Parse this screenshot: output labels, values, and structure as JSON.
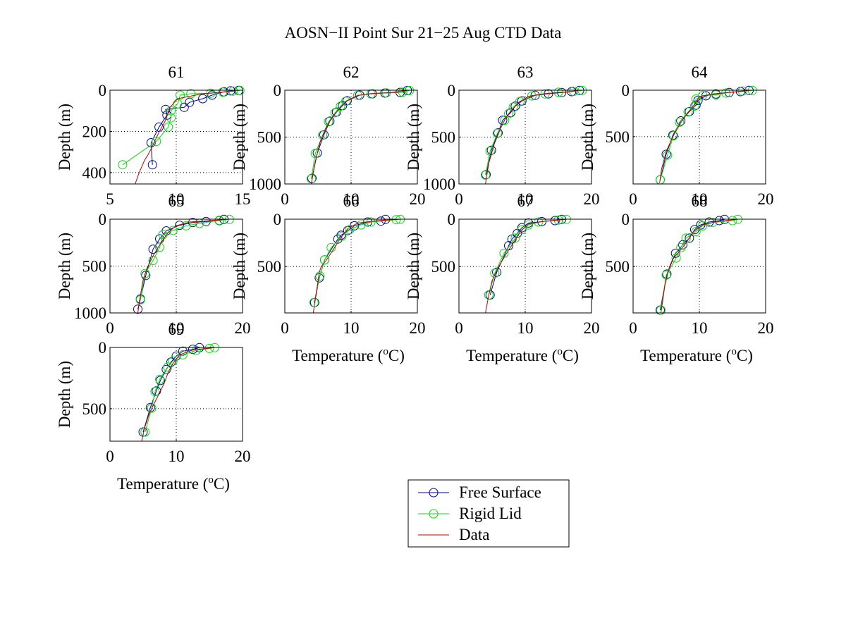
{
  "chart_data": {
    "type": "line",
    "title": "AOSN−II Point Sur 21−25 Aug CTD Data",
    "xlabel": "Temperature  (°C)",
    "xlabel_main": "Temperature  (",
    "xlabel_sup": "o",
    "xlabel_end": "C)",
    "ylabel": "Depth  (m)",
    "grid": "dotted at interior ticks",
    "legend": {
      "placement": "bottom-center",
      "entries": [
        {
          "name": "Free Surface",
          "color": "#0000a0",
          "marker": "circle"
        },
        {
          "name": "Rigid Lid",
          "color": "#00e000",
          "marker": "circle"
        },
        {
          "name": "Data",
          "color": "#c00000",
          "marker": "none"
        }
      ]
    },
    "panels": [
      {
        "title": "61",
        "xlim": [
          5,
          15
        ],
        "ylim": [
          0,
          455
        ],
        "xticks": [
          "5",
          "10",
          "15"
        ],
        "yticks": [
          "0",
          "200",
          "400"
        ],
        "ytick_vals": [
          0,
          200,
          400
        ],
        "ylabel_visible": true,
        "xlabel_visible": false,
        "series": [
          {
            "name": "Free Surface",
            "x": [
              14.7,
              14.1,
              13.6,
              12.7,
              12.0,
              11.0,
              10.6,
              9.2,
              9.3,
              8.7,
              8.1,
              8.2
            ],
            "y": [
              1,
              3,
              8,
              24,
              41,
              59,
              83,
              93,
              121,
              179,
              255,
              362
            ]
          },
          {
            "name": "Rigid Lid",
            "x": [
              14.8,
              14.3,
              13.5,
              12.6,
              11.1,
              10.3,
              10.1,
              9.6,
              9.6,
              9.4,
              8.5,
              5.95
            ],
            "y": [
              1,
              4,
              9,
              15,
              17,
              24,
              66,
              100,
              134,
              179,
              248,
              362
            ]
          },
          {
            "name": "Data",
            "x": [
              14.5,
              13.5,
              12.0,
              10.1,
              9.5,
              9.2,
              8.7,
              8.3,
              7.9,
              7.6,
              7.2,
              6.9
            ],
            "y": [
              3,
              9,
              17,
              41,
              86,
              145,
              203,
              259,
              310,
              341,
              400,
              455
            ]
          }
        ]
      },
      {
        "title": "62",
        "xlim": [
          0,
          20
        ],
        "ylim": [
          0,
          1000
        ],
        "xticks": [
          "0",
          "10",
          "20"
        ],
        "yticks": [
          "0",
          "500",
          "1000"
        ],
        "ytick_vals": [
          0,
          500,
          1000
        ],
        "ylabel_visible": true,
        "xlabel_visible": false,
        "series": [
          {
            "name": "Free Surface",
            "x": [
              18.5,
              17.4,
              15.1,
              13.2,
              11.3,
              9.4,
              8.7,
              7.8,
              6.8,
              5.9,
              4.9,
              4.1
            ],
            "y": [
              3,
              23,
              30,
              38,
              53,
              113,
              165,
              233,
              330,
              475,
              670,
              940
            ]
          },
          {
            "name": "Rigid Lid",
            "x": [
              18.8,
              17.8,
              15.3,
              13.0,
              11.0,
              9.2,
              8.4,
              7.6,
              6.6,
              5.7,
              4.6,
              4.0
            ],
            "y": [
              3,
              20,
              28,
              40,
              55,
              118,
              170,
              240,
              335,
              480,
              675,
              945
            ]
          },
          {
            "name": "Data",
            "x": [
              18.2,
              16.0,
              13.0,
              11.0,
              9.3,
              8.3,
              7.2,
              6.2,
              5.3,
              4.6,
              4.0
            ],
            "y": [
              3,
              25,
              35,
              55,
              115,
              190,
              285,
              400,
              560,
              760,
              1000
            ]
          }
        ]
      },
      {
        "title": "63",
        "xlim": [
          0,
          20
        ],
        "ylim": [
          0,
          1000
        ],
        "xticks": [
          "0",
          "10",
          "20"
        ],
        "yticks": [
          "0",
          "500",
          "1000"
        ],
        "ytick_vals": [
          0,
          500,
          1000
        ],
        "ylabel_visible": true,
        "xlabel_visible": false,
        "series": [
          {
            "name": "Free Surface",
            "x": [
              18.2,
              17.0,
              15.5,
              13.5,
              11.5,
              9.5,
              8.5,
              7.8,
              6.6,
              5.9,
              4.9,
              4.1
            ],
            "y": [
              2,
              15,
              25,
              38,
              55,
              115,
              170,
              240,
              320,
              455,
              640,
              900
            ]
          },
          {
            "name": "Rigid Lid",
            "x": [
              18.6,
              17.3,
              15.0,
              13.0,
              11.0,
              9.2,
              8.2,
              7.5,
              6.9,
              5.8,
              4.7,
              4.0
            ],
            "y": [
              2,
              12,
              22,
              40,
              60,
              120,
              180,
              250,
              320,
              460,
              650,
              905
            ]
          },
          {
            "name": "Data",
            "x": [
              18.0,
              16.0,
              13.0,
              10.5,
              9.0,
              8.0,
              7.0,
              6.2,
              5.3,
              4.5,
              4.0
            ],
            "y": [
              3,
              20,
              35,
              65,
              130,
              210,
              300,
              420,
              580,
              780,
              1000
            ]
          }
        ]
      },
      {
        "title": "64",
        "xlim": [
          0,
          20
        ],
        "ylim": [
          0,
          1010
        ],
        "xticks": [
          "0",
          "10",
          "20"
        ],
        "yticks": [
          "0",
          "500"
        ],
        "ytick_vals": [
          0,
          500
        ],
        "ylabel_visible": true,
        "xlabel_visible": false,
        "series": [
          {
            "name": "Free Surface",
            "x": [
              17.5,
              16.2,
              14.5,
              12.5,
              11.0,
              9.8,
              9.5,
              8.5,
              7.2,
              6.0,
              5.0,
              4.1
            ],
            "y": [
              2,
              15,
              25,
              40,
              60,
              110,
              160,
              230,
              330,
              485,
              690,
              965
            ]
          },
          {
            "name": "Rigid Lid",
            "x": [
              18.0,
              16.5,
              14.0,
              12.5,
              10.5,
              9.5,
              9.3,
              8.3,
              7.0,
              6.1,
              5.2,
              4.1
            ],
            "y": [
              2,
              10,
              30,
              50,
              55,
              95,
              170,
              235,
              345,
              490,
              700,
              965
            ]
          },
          {
            "name": "Data",
            "x": [
              17.5,
              15.0,
              12.0,
              10.0,
              9.3,
              8.3,
              7.2,
              6.0,
              5.0,
              4.3,
              4.0
            ],
            "y": [
              3,
              20,
              40,
              70,
              150,
              240,
              350,
              500,
              660,
              850,
              1000
            ]
          }
        ]
      },
      {
        "title": "65",
        "xlim": [
          0,
          20
        ],
        "ylim": [
          0,
          1000
        ],
        "xticks": [
          "0",
          "10",
          "20"
        ],
        "yticks": [
          "0",
          "500",
          "1000"
        ],
        "ytick_vals": [
          0,
          500,
          1000
        ],
        "ylabel_visible": true,
        "xlabel_visible": false,
        "series": [
          {
            "name": "Free Surface",
            "x": [
              17.2,
              16.5,
              14.5,
              12.5,
              10.5,
              8.5,
              7.5,
              6.5,
              5.4,
              4.6,
              4.2
            ],
            "y": [
              2,
              15,
              25,
              35,
              65,
              125,
              210,
              320,
              600,
              850,
              960
            ]
          },
          {
            "name": "Rigid Lid",
            "x": [
              18.0,
              16.5,
              13.5,
              11.5,
              9.5,
              8.0,
              7.5,
              6.5,
              5.3,
              4.6
            ],
            "y": [
              2,
              12,
              45,
              70,
              120,
              165,
              300,
              440,
              580,
              860
            ]
          },
          {
            "name": "Data",
            "x": [
              17.5,
              15.0,
              12.0,
              10.0,
              8.8,
              7.8,
              6.6,
              5.6,
              5.0,
              4.5,
              4.2
            ],
            "y": [
              3,
              15,
              30,
              70,
              140,
              240,
              380,
              520,
              650,
              850,
              1000
            ]
          }
        ]
      },
      {
        "title": "66",
        "xlim": [
          0,
          20
        ],
        "ylim": [
          0,
          990
        ],
        "xticks": [
          "0",
          "10",
          "20"
        ],
        "yticks": [
          "0",
          "500"
        ],
        "ytick_vals": [
          0,
          500
        ],
        "ylabel_visible": true,
        "xlabel_visible": true,
        "series": [
          {
            "name": "Free Surface",
            "x": [
              15.2,
              14.5,
              12.5,
              10.5,
              9.5,
              8.5,
              8.0,
              6.0,
              5.2,
              4.5
            ],
            "y": [
              2,
              20,
              30,
              70,
              120,
              170,
              210,
              430,
              620,
              880
            ]
          },
          {
            "name": "Rigid Lid",
            "x": [
              17.4,
              16.8,
              13.0,
              11.5,
              9.8,
              8.6,
              7.0,
              6.0,
              5.3,
              4.4
            ],
            "y": [
              2,
              5,
              30,
              60,
              110,
              180,
              300,
              430,
              600,
              880
            ]
          },
          {
            "name": "Data",
            "x": [
              17.0,
              14.0,
              11.0,
              9.5,
              8.4,
              7.5,
              6.5,
              5.5,
              5.2,
              4.7,
              4.3
            ],
            "y": [
              3,
              15,
              40,
              100,
              200,
              300,
              410,
              500,
              560,
              800,
              990
            ]
          }
        ]
      },
      {
        "title": "67",
        "xlim": [
          0,
          20
        ],
        "ylim": [
          0,
          990
        ],
        "xticks": [
          "0",
          "10",
          "20"
        ],
        "yticks": [
          "0",
          "500"
        ],
        "ytick_vals": [
          0,
          500
        ],
        "ylabel_visible": true,
        "xlabel_visible": true,
        "series": [
          {
            "name": "Free Surface",
            "x": [
              15.5,
              14.5,
              12.5,
              10.5,
              9.5,
              8.8,
              8.0,
              7.5,
              5.7,
              4.7
            ],
            "y": [
              2,
              15,
              25,
              40,
              90,
              150,
              210,
              280,
              560,
              800
            ]
          },
          {
            "name": "Rigid Lid",
            "x": [
              16.2,
              15.0,
              12.0,
              10.5,
              9.5,
              8.5,
              6.8,
              5.4,
              4.5
            ],
            "y": [
              2,
              10,
              30,
              60,
              110,
              200,
              360,
              570,
              800
            ]
          },
          {
            "name": "Data",
            "x": [
              16.0,
              13.0,
              10.5,
              9.3,
              8.2,
              7.0,
              6.0,
              5.0,
              4.5,
              4.0
            ],
            "y": [
              3,
              20,
              50,
              130,
              250,
              380,
              500,
              650,
              800,
              990
            ]
          }
        ]
      },
      {
        "title": "68",
        "xlim": [
          0,
          20
        ],
        "ylim": [
          0,
          990
        ],
        "xticks": [
          "0",
          "10",
          "20"
        ],
        "yticks": [
          "0",
          "500"
        ],
        "ytick_vals": [
          0,
          500
        ],
        "ylabel_visible": true,
        "xlabel_visible": true,
        "series": [
          {
            "name": "Free Surface",
            "x": [
              13.8,
              13.0,
              11.5,
              10.2,
              9.3,
              8.5,
              7.5,
              6.4,
              5.1,
              4.1
            ],
            "y": [
              2,
              15,
              30,
              60,
              110,
              200,
              270,
              360,
              580,
              960
            ]
          },
          {
            "name": "Rigid Lid",
            "x": [
              15.8,
              15.0,
              12.0,
              10.5,
              9.5,
              8.0,
              7.2,
              6.5,
              5.0,
              4.2
            ],
            "y": [
              2,
              15,
              35,
              70,
              130,
              200,
              300,
              410,
              590,
              960
            ]
          },
          {
            "name": "Data",
            "x": [
              15.5,
              12.5,
              10.5,
              9.0,
              8.0,
              7.0,
              6.0,
              5.5,
              4.8,
              4.2
            ],
            "y": [
              3,
              25,
              60,
              140,
              250,
              340,
              420,
              500,
              700,
              990
            ]
          }
        ]
      },
      {
        "title": "69",
        "xlim": [
          0,
          20
        ],
        "ylim": [
          0,
          765
        ],
        "xticks": [
          "0",
          "10",
          "20"
        ],
        "yticks": [
          "0",
          "500"
        ],
        "ytick_vals": [
          0,
          500
        ],
        "ylabel_visible": true,
        "xlabel_visible": true,
        "series": [
          {
            "name": "Free Surface",
            "x": [
              13.5,
              12.5,
              11.0,
              10.0,
              9.2,
              8.5,
              7.6,
              7.0,
              6.1,
              5.0
            ],
            "y": [
              2,
              15,
              30,
              70,
              120,
              180,
              270,
              355,
              490,
              690
            ]
          },
          {
            "name": "Rigid Lid",
            "x": [
              15.8,
              15.0,
              13.0,
              11.0,
              9.5,
              8.7,
              7.5,
              6.8,
              6.3,
              5.3
            ],
            "y": [
              2,
              8,
              25,
              60,
              110,
              160,
              260,
              360,
              495,
              690
            ]
          },
          {
            "name": "Data",
            "x": [
              15.5,
              12.5,
              10.5,
              9.5,
              8.8,
              8.2,
              7.2,
              6.0,
              5.2,
              4.8
            ],
            "y": [
              3,
              20,
              60,
              130,
              200,
              290,
              400,
              530,
              660,
              765
            ]
          }
        ]
      }
    ]
  }
}
